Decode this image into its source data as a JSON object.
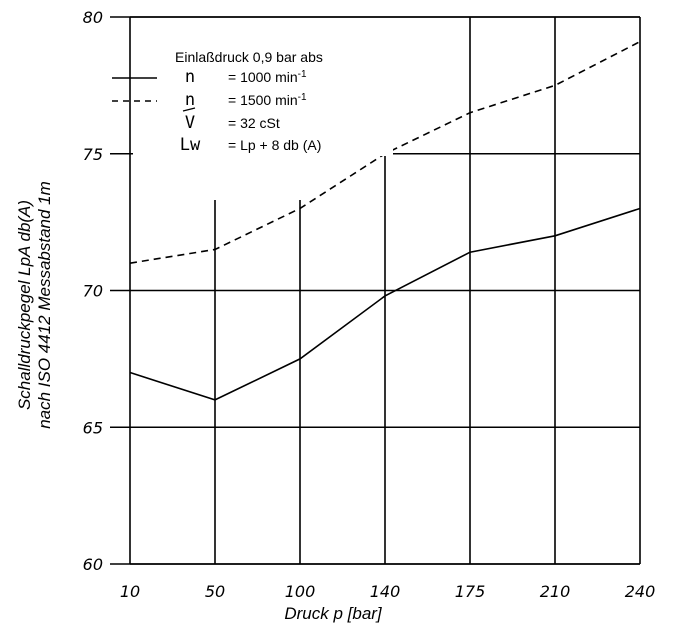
{
  "chart_data": {
    "type": "line",
    "xlabel": "Druck p [bar]",
    "ylabel_line1": "Schalldruckpegel LpA db(A)",
    "ylabel_line2": "nach ISO 4412 Messabstand 1m",
    "x_ticks": [
      "10",
      "50",
      "100",
      "140",
      "175",
      "210",
      "240"
    ],
    "ylim": [
      60,
      80
    ],
    "y_ticks": [
      "60",
      "65",
      "70",
      "75",
      "80"
    ],
    "grid": true,
    "series": [
      {
        "name": "n = 1000 min-1",
        "style": "solid",
        "values": [
          67,
          66,
          67.5,
          69.8,
          71.4,
          72,
          73
        ]
      },
      {
        "name": "n = 1500 min-1",
        "style": "dashed",
        "values": [
          71,
          71.5,
          73,
          75,
          76.5,
          77.5,
          79.1
        ]
      }
    ],
    "legend": {
      "title": "Einlaßdruck 0,9 bar abs",
      "entries": [
        {
          "symbol": "n",
          "line": "solid",
          "text": "= 1000 min",
          "sup": "-1"
        },
        {
          "symbol": "n",
          "line": "dashed",
          "text": "= 1500 min",
          "sup": "-1"
        },
        {
          "symbol": "V",
          "line": "none",
          "text": "= 32 cSt",
          "sup": ""
        },
        {
          "symbol": "Lw",
          "line": "none",
          "text": "= Lp + 8 db (A)",
          "sup": ""
        }
      ]
    }
  }
}
